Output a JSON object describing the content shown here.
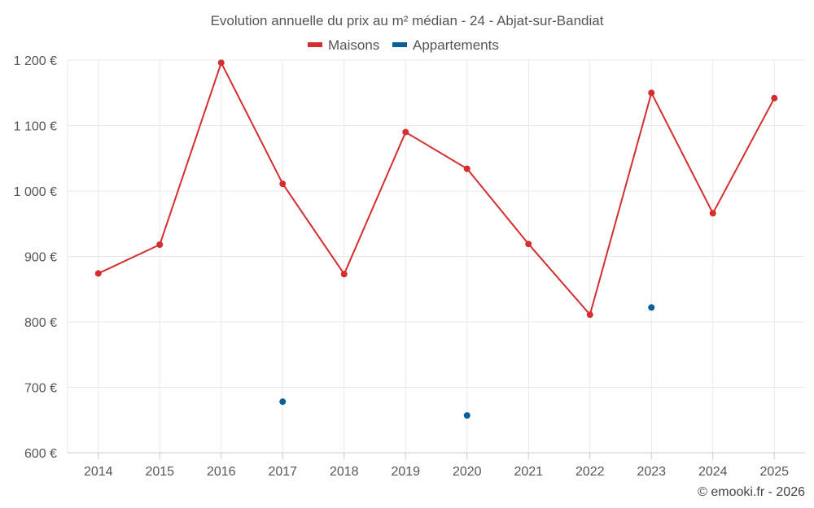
{
  "chart_data": {
    "type": "line",
    "title": "Evolution annuelle du prix au m² médian - 24 - Abjat-sur-Bandiat",
    "categories": [
      "2014",
      "2015",
      "2016",
      "2017",
      "2018",
      "2019",
      "2020",
      "2021",
      "2022",
      "2023",
      "2024",
      "2025"
    ],
    "series": [
      {
        "name": "Maisons",
        "color": "#d32f2f",
        "values": [
          874,
          918,
          1196,
          1011,
          873,
          1090,
          1034,
          919,
          811,
          1150,
          966,
          1142
        ]
      },
      {
        "name": "Appartements",
        "color": "#0a5f99",
        "values": [
          null,
          null,
          null,
          678,
          null,
          null,
          657,
          null,
          null,
          822,
          null,
          null
        ]
      }
    ],
    "y_ticks": [
      "600 €",
      "700 €",
      "800 €",
      "900 €",
      "1 000 €",
      "1 100 €",
      "1 200 €"
    ],
    "y_tick_values": [
      600,
      700,
      800,
      900,
      1000,
      1100,
      1200
    ],
    "ylim": [
      600,
      1200
    ],
    "grid": true,
    "legend_position": "top-center",
    "credit": "© emooki.fr - 2026"
  }
}
